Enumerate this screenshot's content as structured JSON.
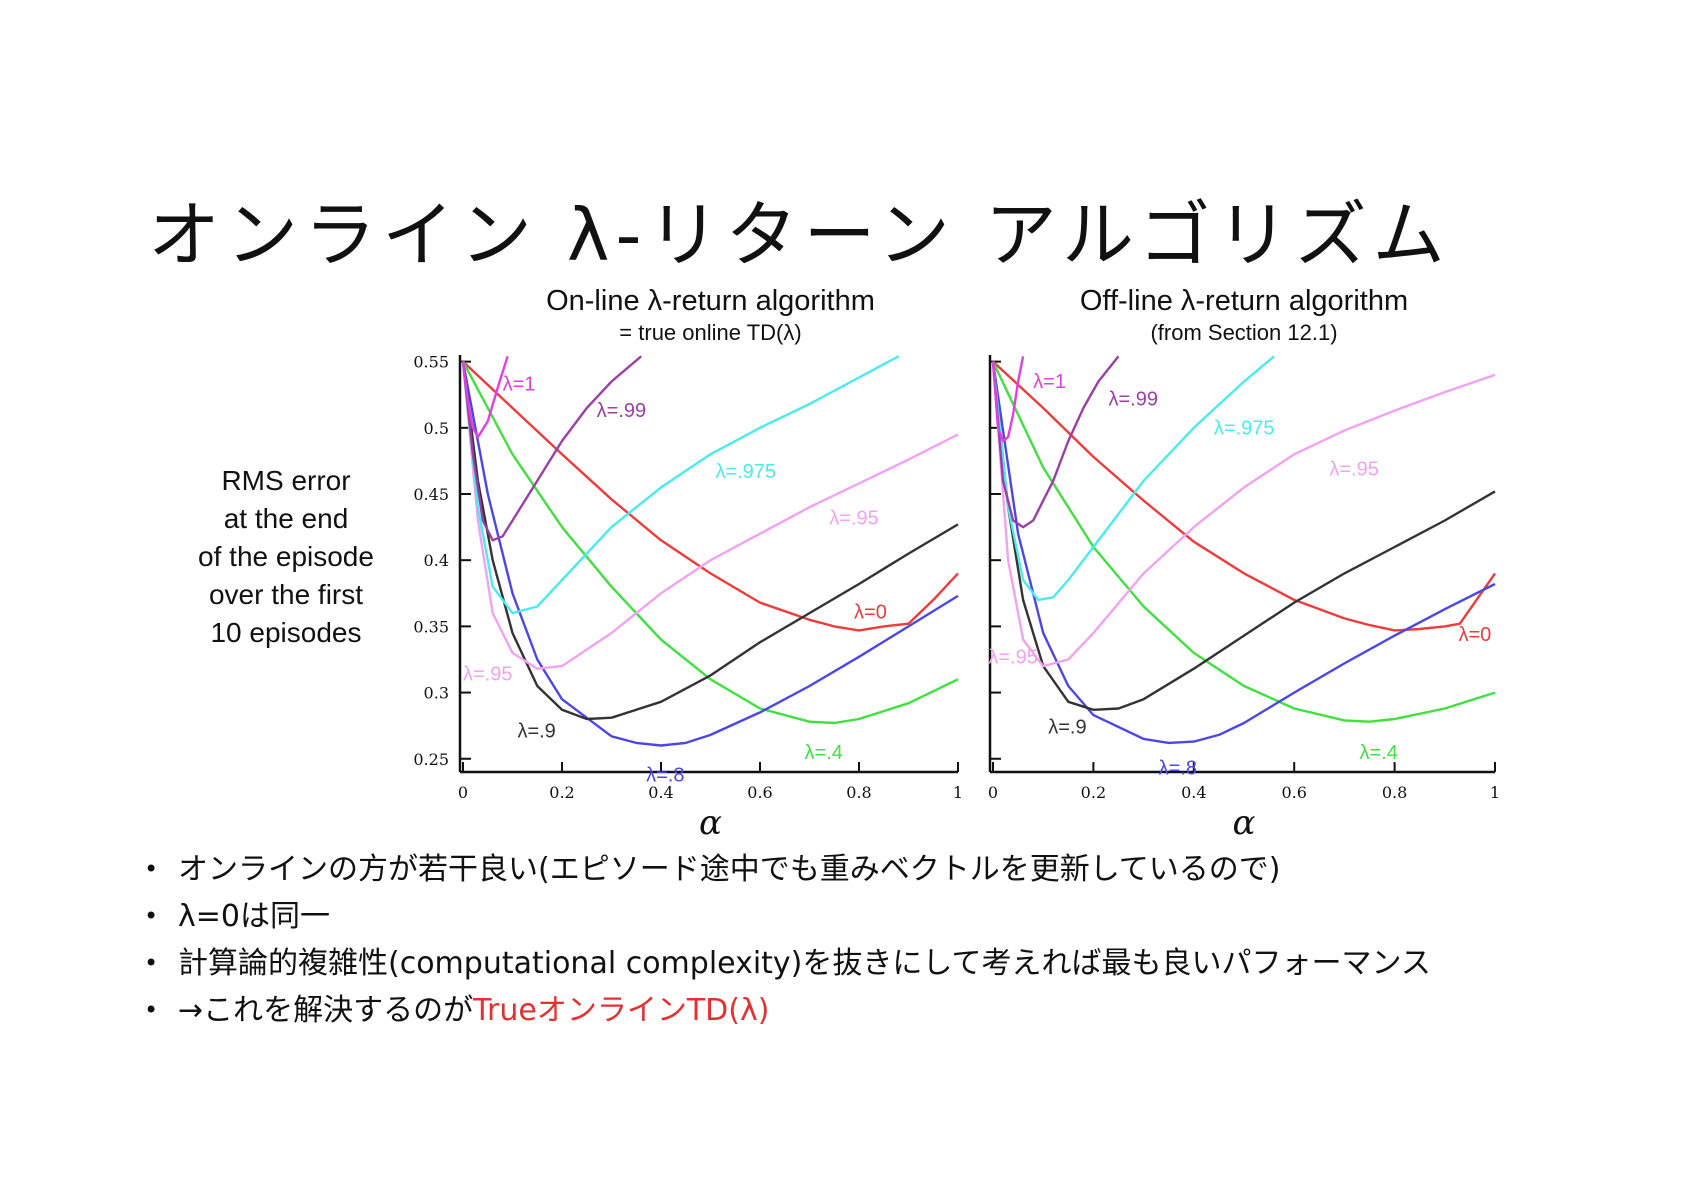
{
  "slide": {
    "title": "オンライン λ-リターン アルゴリズム",
    "y_label_lines": [
      "RMS error",
      "at the end",
      "of the episode",
      "over the first",
      "10 episodes"
    ],
    "bullets": [
      {
        "text": "オンラインの方が若干良い(エピソード途中でも重みベクトルを更新しているので)"
      },
      {
        "text": "λ=0は同一"
      },
      {
        "text": "計算論的複雑性(computational complexity)を抜きにして考えれば最も良いパフォーマンス"
      },
      {
        "text": "→これを解決するのが",
        "highlight": "TrueオンラインTD(λ)",
        "highlight_color": "#e53030"
      }
    ]
  },
  "chart_data": [
    {
      "type": "line",
      "title": "On-line λ-return algorithm",
      "subtitle": "= true online TD(λ)",
      "xlabel": "α",
      "ylabel": "RMS error at the end of the episode over the first 10 episodes",
      "xlim": [
        0,
        1
      ],
      "ylim": [
        0.24,
        0.555
      ],
      "xticks": [
        "0",
        "0.2",
        "0.4",
        "0.6",
        "0.8",
        "1"
      ],
      "yticks": [
        "0.25",
        "0.3",
        "0.35",
        "0.4",
        "0.45",
        "0.5",
        "0.55"
      ],
      "series": [
        {
          "name": "λ=0",
          "color": "#ee3b3b",
          "x": [
            0,
            0.1,
            0.2,
            0.3,
            0.4,
            0.5,
            0.6,
            0.7,
            0.75,
            0.8,
            0.85,
            0.9,
            0.95,
            1.0
          ],
          "y": [
            0.55,
            0.515,
            0.48,
            0.446,
            0.415,
            0.39,
            0.368,
            0.355,
            0.35,
            0.347,
            0.35,
            0.352,
            0.37,
            0.39
          ]
        },
        {
          "name": "λ=.4",
          "color": "#3fe03f",
          "x": [
            0,
            0.1,
            0.2,
            0.3,
            0.4,
            0.5,
            0.6,
            0.7,
            0.75,
            0.8,
            0.9,
            1.0
          ],
          "y": [
            0.55,
            0.48,
            0.425,
            0.38,
            0.34,
            0.31,
            0.288,
            0.278,
            0.277,
            0.28,
            0.292,
            0.31
          ]
        },
        {
          "name": "λ=.8",
          "color": "#4b46e8",
          "x": [
            0,
            0.05,
            0.1,
            0.15,
            0.2,
            0.3,
            0.35,
            0.4,
            0.45,
            0.5,
            0.6,
            0.7,
            0.8,
            0.9,
            1.0
          ],
          "y": [
            0.55,
            0.45,
            0.375,
            0.325,
            0.295,
            0.267,
            0.262,
            0.26,
            0.262,
            0.268,
            0.285,
            0.305,
            0.327,
            0.35,
            0.373
          ]
        },
        {
          "name": "λ=.9",
          "color": "#333333",
          "x": [
            0,
            0.03,
            0.06,
            0.1,
            0.15,
            0.2,
            0.25,
            0.3,
            0.4,
            0.5,
            0.6,
            0.7,
            0.8,
            0.9,
            1.0
          ],
          "y": [
            0.55,
            0.46,
            0.4,
            0.345,
            0.305,
            0.287,
            0.28,
            0.281,
            0.293,
            0.313,
            0.338,
            0.36,
            0.382,
            0.405,
            0.427
          ]
        },
        {
          "name": "λ=.95",
          "color": "#f2a2f2",
          "x": [
            0,
            0.03,
            0.06,
            0.1,
            0.15,
            0.2,
            0.3,
            0.4,
            0.5,
            0.6,
            0.7,
            0.8,
            0.9,
            1.0
          ],
          "y": [
            0.55,
            0.43,
            0.36,
            0.33,
            0.318,
            0.32,
            0.345,
            0.375,
            0.4,
            0.42,
            0.44,
            0.458,
            0.476,
            0.495
          ]
        },
        {
          "name": "λ=.975",
          "color": "#49ecec",
          "x": [
            0,
            0.03,
            0.06,
            0.1,
            0.15,
            0.2,
            0.3,
            0.4,
            0.5,
            0.6,
            0.7,
            0.8,
            0.88
          ],
          "y": [
            0.55,
            0.44,
            0.38,
            0.36,
            0.365,
            0.385,
            0.425,
            0.455,
            0.48,
            0.5,
            0.518,
            0.538,
            0.554
          ]
        },
        {
          "name": "λ=.99",
          "color": "#9b3fa6",
          "x": [
            0,
            0.02,
            0.04,
            0.06,
            0.08,
            0.1,
            0.15,
            0.2,
            0.25,
            0.3,
            0.36
          ],
          "y": [
            0.55,
            0.48,
            0.43,
            0.415,
            0.418,
            0.43,
            0.46,
            0.49,
            0.515,
            0.535,
            0.554
          ]
        },
        {
          "name": "λ=1",
          "color": "#e23fe0",
          "x": [
            0,
            0.01,
            0.02,
            0.03,
            0.05,
            0.07,
            0.09
          ],
          "y": [
            0.55,
            0.52,
            0.5,
            0.493,
            0.505,
            0.53,
            0.554
          ]
        }
      ]
    },
    {
      "type": "line",
      "title": "Off-line λ-return algorithm",
      "subtitle": "(from Section 12.1)",
      "xlabel": "α",
      "ylabel": "RMS error at the end of the episode over the first 10 episodes",
      "xlim": [
        0,
        1
      ],
      "ylim": [
        0.24,
        0.555
      ],
      "xticks": [
        "0",
        "0.2",
        "0.4",
        "0.6",
        "0.8",
        "1"
      ],
      "yticks": [],
      "series": [
        {
          "name": "λ=0",
          "color": "#ee3b3b",
          "x": [
            0,
            0.1,
            0.2,
            0.3,
            0.4,
            0.5,
            0.6,
            0.7,
            0.75,
            0.8,
            0.85,
            0.9,
            0.93,
            1.0
          ],
          "y": [
            0.55,
            0.515,
            0.478,
            0.445,
            0.414,
            0.39,
            0.37,
            0.356,
            0.351,
            0.347,
            0.348,
            0.35,
            0.352,
            0.39
          ]
        },
        {
          "name": "λ=.4",
          "color": "#3fe03f",
          "x": [
            0,
            0.1,
            0.2,
            0.3,
            0.4,
            0.5,
            0.6,
            0.7,
            0.75,
            0.8,
            0.9,
            1.0
          ],
          "y": [
            0.55,
            0.47,
            0.41,
            0.365,
            0.33,
            0.305,
            0.288,
            0.279,
            0.278,
            0.28,
            0.288,
            0.3
          ]
        },
        {
          "name": "λ=.8",
          "color": "#4b46e8",
          "x": [
            0,
            0.05,
            0.1,
            0.15,
            0.2,
            0.3,
            0.35,
            0.4,
            0.45,
            0.5,
            0.6,
            0.7,
            0.8,
            0.9,
            1.0
          ],
          "y": [
            0.55,
            0.42,
            0.345,
            0.305,
            0.283,
            0.265,
            0.262,
            0.263,
            0.268,
            0.277,
            0.3,
            0.322,
            0.343,
            0.363,
            0.382
          ]
        },
        {
          "name": "λ=.9",
          "color": "#333333",
          "x": [
            0,
            0.03,
            0.06,
            0.1,
            0.15,
            0.2,
            0.25,
            0.3,
            0.4,
            0.5,
            0.6,
            0.7,
            0.8,
            0.9,
            1.0
          ],
          "y": [
            0.55,
            0.44,
            0.37,
            0.32,
            0.293,
            0.287,
            0.288,
            0.295,
            0.318,
            0.343,
            0.368,
            0.39,
            0.41,
            0.43,
            0.452
          ]
        },
        {
          "name": "λ=.95",
          "color": "#f2a2f2",
          "x": [
            0,
            0.03,
            0.06,
            0.1,
            0.15,
            0.2,
            0.3,
            0.4,
            0.5,
            0.6,
            0.7,
            0.8,
            0.9,
            1.0
          ],
          "y": [
            0.55,
            0.4,
            0.34,
            0.32,
            0.325,
            0.345,
            0.39,
            0.425,
            0.455,
            0.48,
            0.498,
            0.513,
            0.527,
            0.54
          ]
        },
        {
          "name": "λ=.975",
          "color": "#49ecec",
          "x": [
            0,
            0.03,
            0.06,
            0.09,
            0.12,
            0.15,
            0.2,
            0.3,
            0.4,
            0.5,
            0.56
          ],
          "y": [
            0.55,
            0.44,
            0.385,
            0.37,
            0.372,
            0.385,
            0.41,
            0.46,
            0.5,
            0.535,
            0.554
          ]
        },
        {
          "name": "λ=.99",
          "color": "#9b3fa6",
          "x": [
            0,
            0.02,
            0.04,
            0.06,
            0.08,
            0.1,
            0.12,
            0.15,
            0.18,
            0.21,
            0.25
          ],
          "y": [
            0.55,
            0.46,
            0.43,
            0.425,
            0.43,
            0.445,
            0.46,
            0.49,
            0.515,
            0.535,
            0.554
          ]
        },
        {
          "name": "λ=1",
          "color": "#e23fe0",
          "x": [
            0,
            0.01,
            0.02,
            0.03,
            0.04,
            0.05,
            0.06
          ],
          "y": [
            0.55,
            0.5,
            0.49,
            0.493,
            0.51,
            0.535,
            0.554
          ]
        }
      ]
    }
  ]
}
